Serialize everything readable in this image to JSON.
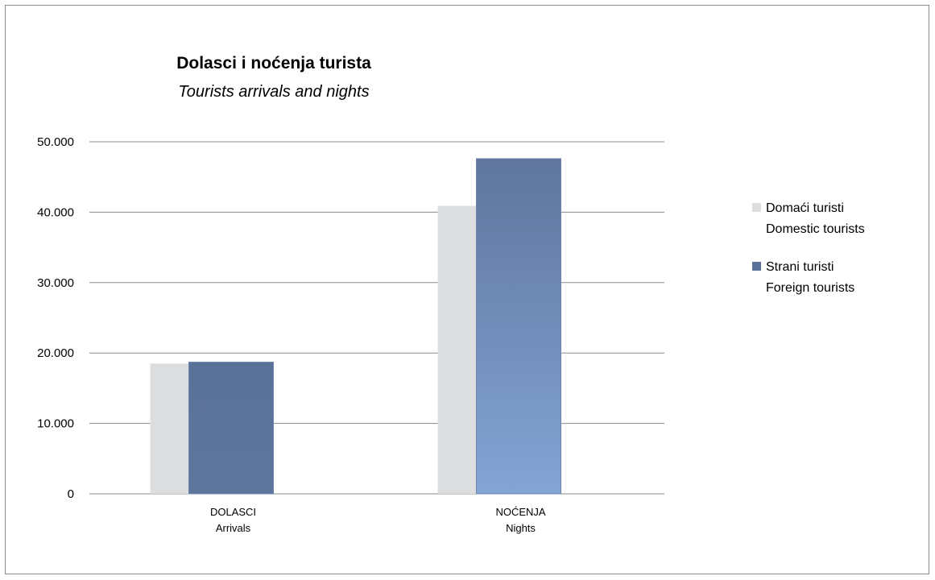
{
  "chart_data": {
    "type": "bar",
    "title": "Dolasci i noćenja turista",
    "subtitle": "Tourists arrivals and nights",
    "categories": [
      {
        "label": "DOLASCI",
        "sublabel": "Arrivals"
      },
      {
        "label": "NOĆENJA",
        "sublabel": "Nights"
      }
    ],
    "series": [
      {
        "name": "Domaći turisti",
        "name_en": "Domestic tourists",
        "values": [
          18500,
          40900
        ]
      },
      {
        "name": "Strani turisti",
        "name_en": "Foreign tourists",
        "values": [
          18700,
          47600
        ]
      }
    ],
    "ylim": [
      0,
      50000
    ],
    "yticks": [
      0,
      10000,
      20000,
      30000,
      40000,
      50000
    ],
    "ytick_labels": [
      "0",
      "10.000",
      "20.000",
      "30.000",
      "40.000",
      "50.000"
    ],
    "grid": true,
    "legend_position": "right",
    "colors": {
      "domestic": "#dcdddf",
      "foreign_top": "#5b7299",
      "foreign_bottom": "#82a3d4",
      "grid": "#8a8a8a"
    }
  }
}
